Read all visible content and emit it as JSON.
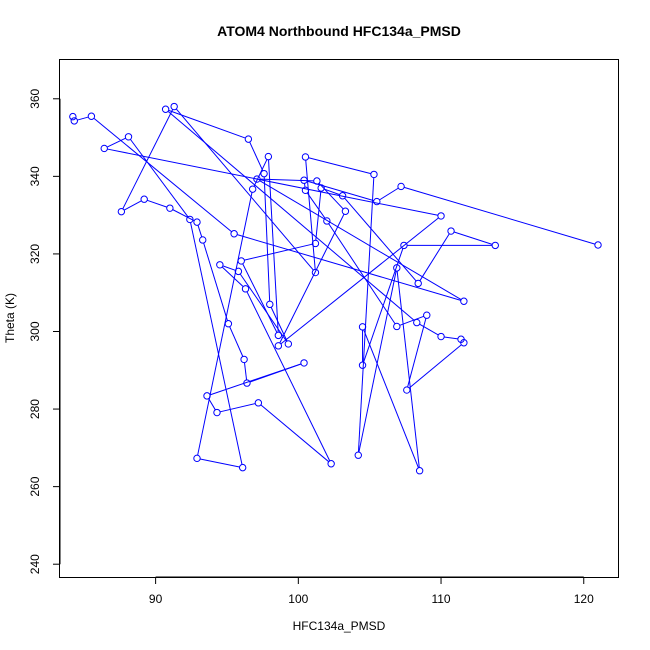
{
  "chart_data": {
    "type": "line",
    "title": "ATOM4 Northbound HFC134a_PMSD",
    "xlabel": "HFC134a_PMSD",
    "ylabel": "Theta (K)",
    "xlim": [
      83.3,
      122.4
    ],
    "ylim": [
      236.7,
      370.0
    ],
    "x_ticks": [
      90,
      100,
      110,
      120
    ],
    "y_ticks": [
      240,
      260,
      280,
      300,
      320,
      340,
      360
    ],
    "color": "#0000ff",
    "marker": "open-circle",
    "points": [
      {
        "x": 84.2,
        "y": 355.4
      },
      {
        "x": 84.3,
        "y": 354.3
      },
      {
        "x": 85.5,
        "y": 355.5
      },
      {
        "x": 95.5,
        "y": 325.2
      },
      {
        "x": 111.6,
        "y": 307.8
      },
      {
        "x": 97.1,
        "y": 339.3
      },
      {
        "x": 101.3,
        "y": 338.8
      },
      {
        "x": 103.3,
        "y": 331.0
      },
      {
        "x": 98.6,
        "y": 296.3
      },
      {
        "x": 110.0,
        "y": 329.8
      },
      {
        "x": 86.4,
        "y": 347.2
      },
      {
        "x": 88.1,
        "y": 350.2
      },
      {
        "x": 92.4,
        "y": 328.9
      },
      {
        "x": 96.1,
        "y": 264.9
      },
      {
        "x": 92.9,
        "y": 267.3
      },
      {
        "x": 96.8,
        "y": 336.7
      },
      {
        "x": 97.9,
        "y": 345.1
      },
      {
        "x": 98.6,
        "y": 299.0
      },
      {
        "x": 96.0,
        "y": 318.2
      },
      {
        "x": 101.2,
        "y": 322.7
      },
      {
        "x": 101.6,
        "y": 337.0
      },
      {
        "x": 103.1,
        "y": 335.0
      },
      {
        "x": 108.4,
        "y": 312.4
      },
      {
        "x": 110.7,
        "y": 325.9
      },
      {
        "x": 113.8,
        "y": 322.2
      },
      {
        "x": 107.4,
        "y": 322.2
      },
      {
        "x": 104.5,
        "y": 291.3
      },
      {
        "x": 104.5,
        "y": 301.2
      },
      {
        "x": 108.5,
        "y": 264.1
      },
      {
        "x": 106.9,
        "y": 316.4
      },
      {
        "x": 104.2,
        "y": 268.1
      },
      {
        "x": 105.3,
        "y": 340.5
      },
      {
        "x": 100.5,
        "y": 345.0
      },
      {
        "x": 101.2,
        "y": 315.2
      },
      {
        "x": 91.3,
        "y": 358.0
      },
      {
        "x": 87.6,
        "y": 330.9
      },
      {
        "x": 89.2,
        "y": 334.1
      },
      {
        "x": 91.0,
        "y": 331.8
      },
      {
        "x": 92.9,
        "y": 328.2
      },
      {
        "x": 93.3,
        "y": 323.6
      },
      {
        "x": 95.1,
        "y": 302.0
      },
      {
        "x": 96.2,
        "y": 292.8
      },
      {
        "x": 96.4,
        "y": 286.7
      },
      {
        "x": 100.4,
        "y": 291.9
      },
      {
        "x": 93.6,
        "y": 283.4
      },
      {
        "x": 94.3,
        "y": 279.1
      },
      {
        "x": 97.2,
        "y": 281.6
      },
      {
        "x": 102.3,
        "y": 265.9
      },
      {
        "x": 96.3,
        "y": 311.0
      },
      {
        "x": 94.5,
        "y": 317.2
      },
      {
        "x": 95.8,
        "y": 315.5
      },
      {
        "x": 99.3,
        "y": 296.8
      },
      {
        "x": 98.0,
        "y": 307.0
      },
      {
        "x": 97.6,
        "y": 340.7
      },
      {
        "x": 96.5,
        "y": 349.6
      },
      {
        "x": 90.7,
        "y": 357.3
      },
      {
        "x": 108.3,
        "y": 302.3
      },
      {
        "x": 110.0,
        "y": 298.7
      },
      {
        "x": 111.4,
        "y": 298.0
      },
      {
        "x": 111.6,
        "y": 297.1
      },
      {
        "x": 107.6,
        "y": 284.9
      },
      {
        "x": 109.0,
        "y": 304.2
      },
      {
        "x": 106.9,
        "y": 301.3
      },
      {
        "x": 102.0,
        "y": 328.5
      },
      {
        "x": 100.5,
        "y": 336.4
      },
      {
        "x": 100.4,
        "y": 339.0
      },
      {
        "x": 105.5,
        "y": 333.5
      },
      {
        "x": 107.2,
        "y": 337.4
      },
      {
        "x": 121.0,
        "y": 322.3
      }
    ]
  }
}
